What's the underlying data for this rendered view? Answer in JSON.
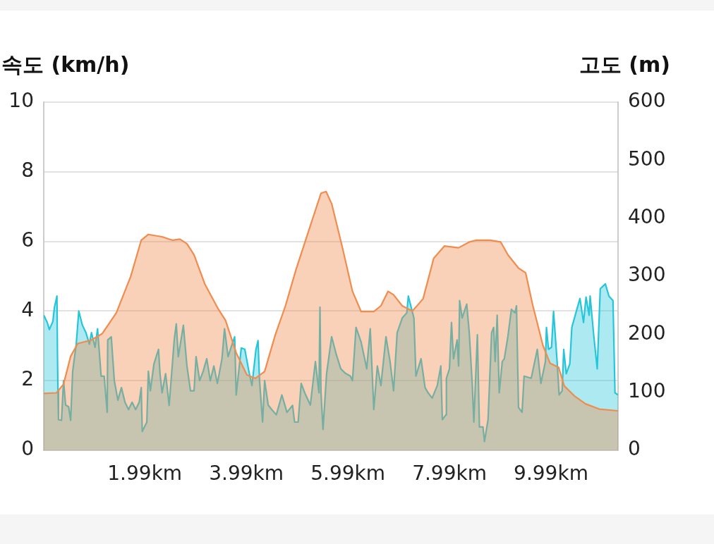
{
  "chart_data": {
    "type": "area",
    "ylabel": "속도 (km/h)",
    "y2label": "고도 (m)",
    "xlim": [
      0,
      11.31
    ],
    "xticks": [
      {
        "value": 1.99,
        "label": "1.99km"
      },
      {
        "value": 3.99,
        "label": "3.99km"
      },
      {
        "value": 5.99,
        "label": "5.99km"
      },
      {
        "value": 7.99,
        "label": "7.99km"
      },
      {
        "value": 9.99,
        "label": "9.99km"
      }
    ],
    "ylim": [
      0,
      10
    ],
    "yticks": [
      0,
      2,
      4,
      6,
      8,
      10
    ],
    "y2lim": [
      0,
      600
    ],
    "y2ticks": [
      0,
      100,
      200,
      300,
      400,
      500,
      600
    ],
    "grid": "y",
    "legend": false,
    "marker": "none",
    "series": [
      {
        "color": "#26c6da",
        "x": [
          0,
          0.07,
          0.11,
          0.18,
          0.21,
          0.26,
          0.27,
          0.28,
          0.29,
          0.35,
          0.39,
          0.43,
          0.49,
          0.53,
          0.57,
          0.64,
          0.69,
          0.76,
          0.83,
          0.9,
          0.94,
          1.01,
          1.06,
          1.13,
          1.19,
          1.25,
          1.26,
          1.33,
          1.39,
          1.46,
          1.53,
          1.6,
          1.67,
          1.74,
          1.81,
          1.88,
          1.92,
          1.94,
          2.03,
          2.06,
          2.1,
          2.17,
          2.26,
          2.29,
          2.33,
          2.4,
          2.47,
          2.57,
          2.61,
          2.65,
          2.75,
          2.82,
          2.89,
          2.96,
          3,
          3.07,
          3.14,
          3.21,
          3.28,
          3.35,
          3.42,
          3.51,
          3.56,
          3.63,
          3.69,
          3.76,
          3.79,
          3.89,
          3.96,
          4.04,
          4.1,
          4.18,
          4.22,
          4.25,
          4.31,
          4.35,
          4.42,
          4.49,
          4.58,
          4.69,
          4.79,
          4.9,
          4.94,
          5.01,
          5.07,
          5.14,
          5.25,
          5.35,
          5.42,
          5.44,
          5.46,
          5.5,
          5.57,
          5.67,
          5.76,
          5.85,
          5.94,
          6.04,
          6.08,
          6.15,
          6.25,
          6.32,
          6.36,
          6.43,
          6.5,
          6.57,
          6.64,
          6.74,
          6.82,
          6.89,
          6.96,
          7.06,
          7.15,
          7.18,
          7.29,
          7.33,
          7.43,
          7.51,
          7.57,
          7.65,
          7.75,
          7.82,
          7.85,
          7.92,
          7.93,
          7.99,
          8.03,
          8.07,
          8.14,
          8.17,
          8.19,
          8.24,
          8.33,
          8.38,
          8.44,
          8.47,
          8.54,
          8.58,
          8.65,
          8.68,
          8.75,
          8.82,
          8.86,
          8.89,
          8.93,
          8.97,
          9.03,
          9.07,
          9.14,
          9.21,
          9.28,
          9.31,
          9.35,
          9.42,
          9.46,
          9.6,
          9.72,
          9.79,
          9.88,
          9.9,
          9.94,
          10,
          10.04,
          10.11,
          10.15,
          10.21,
          10.24,
          10.29,
          10.36,
          10.4,
          10.49,
          10.56,
          10.63,
          10.68,
          10.74,
          10.76,
          10.83,
          10.9,
          10.96,
          11.06,
          11.13,
          11.21,
          11.25,
          11.31
        ],
        "values": [
          3.88,
          3.67,
          3.47,
          3.7,
          4.1,
          4.43,
          2.8,
          1.7,
          0.88,
          0.86,
          2,
          1.3,
          1.25,
          0.86,
          2.27,
          3.05,
          4,
          3.6,
          3.38,
          3.05,
          3.38,
          2.96,
          3.49,
          2.13,
          2.13,
          1.09,
          3.17,
          3.26,
          2,
          1.44,
          1.8,
          1.38,
          1.17,
          1.38,
          1.17,
          1.38,
          1.8,
          0.54,
          0.81,
          2.27,
          1.71,
          2.48,
          2.9,
          2.2,
          1.65,
          2.2,
          1.29,
          3.17,
          3.63,
          2.69,
          3.59,
          2.42,
          1.71,
          1.71,
          2.69,
          2,
          2.27,
          2.63,
          2,
          2.42,
          1.92,
          2.63,
          3.49,
          2.69,
          2.96,
          3.26,
          1.59,
          2.94,
          2.9,
          2.27,
          1.86,
          2.9,
          3.15,
          2,
          0.81,
          2,
          1.3,
          1.17,
          1.02,
          1.59,
          1.09,
          1.29,
          0.81,
          0.81,
          1.92,
          1.65,
          1.3,
          2.55,
          1.65,
          4.11,
          1.65,
          0.6,
          2.2,
          3.26,
          2.76,
          2.34,
          2.21,
          2.13,
          2,
          3.53,
          3.11,
          2.63,
          2.34,
          3.49,
          1.17,
          2.42,
          1.86,
          3.26,
          2.55,
          1.71,
          3.38,
          3.8,
          3.95,
          4.43,
          3.8,
          2.13,
          2.63,
          1.8,
          1.65,
          1.5,
          1.86,
          2.42,
          0.88,
          1.02,
          2.07,
          2.34,
          3.67,
          2.63,
          3.17,
          2.42,
          4.3,
          3.8,
          4.2,
          3.38,
          1.86,
          0.81,
          3.32,
          0.67,
          0.67,
          0.25,
          0.88,
          3.38,
          3.53,
          2.55,
          3.88,
          1.65,
          2.55,
          2.63,
          3.26,
          4.05,
          3.95,
          4.15,
          1.23,
          1.09,
          2.13,
          2.07,
          2.9,
          1.92,
          2.55,
          3.53,
          2.9,
          2.96,
          3.99,
          2.55,
          1.59,
          1.71,
          2.9,
          2.2,
          2.48,
          3.53,
          4,
          4.36,
          3.67,
          4.4,
          3.88,
          4.43,
          3.32,
          2.34,
          4.64,
          4.78,
          4.43,
          4.3,
          1.65,
          1.59
        ]
      },
      {
        "color": "#f08c4e",
        "axis": "y2",
        "x": [
          0,
          0.25,
          0.39,
          0.53,
          0.67,
          0.94,
          1.15,
          1.43,
          1.71,
          1.92,
          2.06,
          2.33,
          2.54,
          2.68,
          2.82,
          2.96,
          3.17,
          3.44,
          3.58,
          3.79,
          4,
          4.17,
          4.35,
          4.56,
          4.76,
          4.97,
          5.25,
          5.46,
          5.56,
          5.67,
          5.88,
          6.08,
          6.25,
          6.5,
          6.64,
          6.78,
          6.89,
          7.06,
          7.26,
          7.47,
          7.68,
          7.89,
          8.17,
          8.38,
          8.51,
          8.79,
          9,
          9.14,
          9.35,
          9.49,
          9.63,
          9.83,
          9.97,
          10.14,
          10.25,
          10.46,
          10.67,
          10.94,
          11.31
        ],
        "values": [
          98,
          99,
          114,
          162,
          184,
          190,
          201,
          237,
          299,
          362,
          372,
          368,
          362,
          364,
          356,
          337,
          287,
          243,
          224,
          168,
          130,
          124,
          136,
          199,
          249,
          312,
          387,
          443,
          446,
          425,
          350,
          274,
          239,
          239,
          249,
          274,
          268,
          249,
          240,
          261,
          331,
          352,
          349,
          359,
          362,
          362,
          359,
          337,
          314,
          306,
          250,
          181,
          150,
          143,
          111,
          93,
          80,
          71,
          68
        ]
      }
    ]
  }
}
